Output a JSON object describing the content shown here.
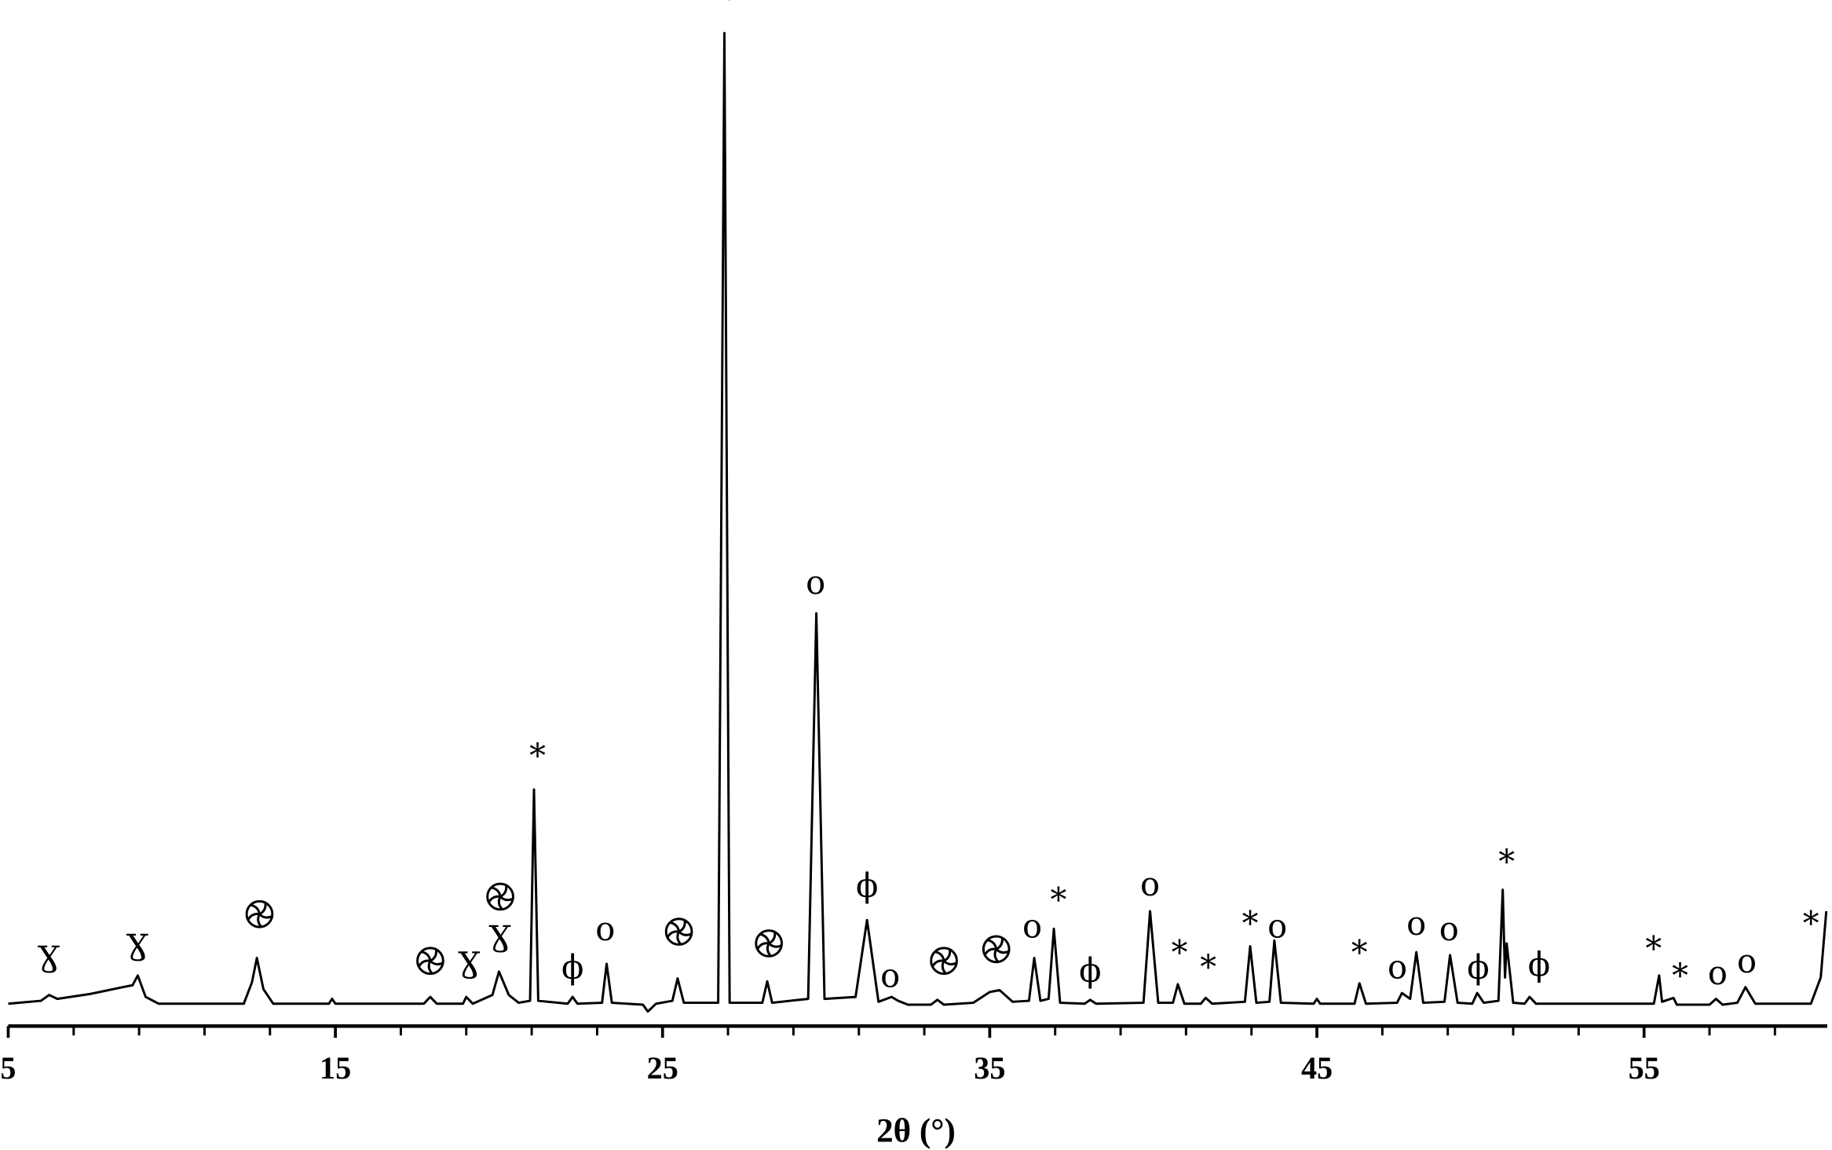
{
  "chart_data": {
    "type": "line",
    "xlabel": "2θ (°)",
    "color": "#000000",
    "xlim": [
      5,
      60.6
    ],
    "ylim": [
      -2,
      103.4
    ],
    "xticks": [
      5,
      15,
      25,
      35,
      45,
      55
    ],
    "minor_xticks": [
      7,
      9,
      11,
      13,
      17,
      19,
      21,
      23,
      27,
      29,
      31,
      33,
      37,
      39,
      41,
      43,
      47,
      49,
      51,
      53,
      57,
      59
    ],
    "x": [
      5.0,
      6.0,
      6.25,
      6.5,
      7.5,
      8.5,
      8.8,
      8.96,
      9.2,
      9.6,
      12.2,
      12.45,
      12.6,
      12.8,
      13.1,
      14.8,
      14.9,
      15.0,
      17.7,
      17.9,
      18.1,
      18.9,
      19.0,
      19.2,
      19.8,
      20.0,
      20.3,
      20.6,
      20.95,
      21.07,
      21.2,
      22.1,
      22.25,
      22.4,
      23.15,
      23.29,
      23.45,
      24.4,
      24.55,
      24.8,
      25.3,
      25.46,
      25.65,
      26.7,
      26.89,
      27.05,
      28.05,
      28.2,
      28.35,
      29.45,
      29.7,
      29.95,
      30.9,
      31.25,
      31.6,
      32.0,
      32.2,
      32.5,
      33.2,
      33.4,
      33.6,
      34.5,
      35.0,
      35.3,
      35.7,
      36.2,
      36.36,
      36.55,
      36.8,
      36.96,
      37.15,
      37.9,
      38.07,
      38.25,
      39.7,
      39.9,
      40.15,
      40.6,
      40.75,
      40.95,
      41.45,
      41.6,
      41.8,
      42.8,
      42.96,
      43.15,
      43.55,
      43.7,
      43.9,
      44.9,
      45.0,
      45.1,
      46.15,
      46.3,
      46.5,
      47.45,
      47.6,
      47.85,
      48.04,
      48.25,
      48.9,
      49.07,
      49.3,
      49.75,
      49.9,
      50.1,
      50.55,
      50.68,
      50.75,
      50.8,
      51.0,
      51.35,
      51.5,
      51.7,
      55.3,
      55.46,
      55.55,
      55.9,
      56.0,
      57.0,
      57.2,
      57.4,
      57.85,
      58.1,
      58.4,
      60.1,
      60.4,
      60.57
    ],
    "values": [
      0.3,
      0.6,
      1.2,
      0.8,
      1.3,
      2.0,
      2.2,
      3.2,
      1.0,
      0.3,
      0.3,
      2.5,
      5.0,
      1.8,
      0.3,
      0.3,
      0.8,
      0.3,
      0.3,
      1.0,
      0.3,
      0.3,
      1.0,
      0.3,
      1.2,
      3.6,
      1.2,
      0.4,
      0.6,
      22.3,
      0.6,
      0.3,
      1.0,
      0.3,
      0.4,
      4.4,
      0.4,
      0.2,
      -0.5,
      0.3,
      0.6,
      2.9,
      0.4,
      0.4,
      100.0,
      0.4,
      0.4,
      2.6,
      0.4,
      0.8,
      40.4,
      0.8,
      1.0,
      8.9,
      0.5,
      1.0,
      0.6,
      0.2,
      0.2,
      0.7,
      0.2,
      0.4,
      1.5,
      1.7,
      0.5,
      0.6,
      5.0,
      0.6,
      0.8,
      8.0,
      0.4,
      0.3,
      0.7,
      0.3,
      0.4,
      9.8,
      0.4,
      0.4,
      2.3,
      0.3,
      0.3,
      0.9,
      0.3,
      0.5,
      6.2,
      0.4,
      0.5,
      6.8,
      0.4,
      0.3,
      0.8,
      0.3,
      0.3,
      2.4,
      0.3,
      0.4,
      1.4,
      0.8,
      5.6,
      0.4,
      0.5,
      5.3,
      0.4,
      0.3,
      1.4,
      0.4,
      0.6,
      12.0,
      3.0,
      6.5,
      0.4,
      0.3,
      1.0,
      0.3,
      0.3,
      3.2,
      0.5,
      0.9,
      0.2,
      0.2,
      0.8,
      0.2,
      0.4,
      2.0,
      0.3,
      0.3,
      3.0,
      9.8
    ],
    "annotations": [
      {
        "text": "Ɣ",
        "x": 6.25,
        "y": 3.8
      },
      {
        "text": "Ɣ",
        "x": 8.96,
        "y": 5.0
      },
      {
        "symbol": "spiral",
        "x": 12.68,
        "y": 8.3
      },
      {
        "symbol": "spiral",
        "x": 17.9,
        "y": 3.5
      },
      {
        "text": "Ɣ",
        "x": 19.1,
        "y": 3.2
      },
      {
        "symbol": "spiral",
        "x": 20.04,
        "y": 10.1
      },
      {
        "text": "Ɣ",
        "x": 20.04,
        "y": 5.9
      },
      {
        "text": "*",
        "x": 21.18,
        "y": 24.6
      },
      {
        "text": "ϕ",
        "x": 22.25,
        "y": 2.9
      },
      {
        "text": "o",
        "x": 23.25,
        "y": 6.8
      },
      {
        "symbol": "spiral",
        "x": 25.5,
        "y": 6.5
      },
      {
        "text": "*",
        "x": 27.04,
        "y": 102.4
      },
      {
        "symbol": "spiral",
        "x": 28.25,
        "y": 5.3
      },
      {
        "text": "o",
        "x": 29.68,
        "y": 42.4
      },
      {
        "text": "ϕ",
        "x": 31.25,
        "y": 11.3
      },
      {
        "text": "o",
        "x": 31.96,
        "y": 2.0
      },
      {
        "symbol": "spiral",
        "x": 33.6,
        "y": 3.5
      },
      {
        "symbol": "spiral",
        "x": 35.2,
        "y": 4.7
      },
      {
        "text": "o",
        "x": 36.3,
        "y": 7.1
      },
      {
        "text": "*",
        "x": 37.1,
        "y": 9.8
      },
      {
        "text": "ϕ",
        "x": 38.07,
        "y": 2.6
      },
      {
        "text": "o",
        "x": 39.9,
        "y": 11.4
      },
      {
        "text": "*",
        "x": 40.8,
        "y": 4.4
      },
      {
        "text": "*",
        "x": 41.68,
        "y": 2.9
      },
      {
        "text": "*",
        "x": 42.96,
        "y": 7.4
      },
      {
        "text": "o",
        "x": 43.79,
        "y": 7.1
      },
      {
        "text": "*",
        "x": 46.3,
        "y": 4.4
      },
      {
        "text": "o",
        "x": 47.46,
        "y": 2.9
      },
      {
        "text": "o",
        "x": 48.04,
        "y": 7.4
      },
      {
        "text": "o",
        "x": 49.04,
        "y": 6.8
      },
      {
        "text": "ϕ",
        "x": 49.93,
        "y": 2.9
      },
      {
        "text": "*",
        "x": 50.8,
        "y": 13.7
      },
      {
        "text": "ϕ",
        "x": 51.79,
        "y": 3.2
      },
      {
        "text": "*",
        "x": 55.29,
        "y": 4.8
      },
      {
        "text": "*",
        "x": 56.1,
        "y": 2.0
      },
      {
        "text": "o",
        "x": 57.25,
        "y": 2.3
      },
      {
        "text": "o",
        "x": 58.14,
        "y": 3.5
      },
      {
        "text": "*",
        "x": 60.1,
        "y": 7.4
      }
    ]
  }
}
